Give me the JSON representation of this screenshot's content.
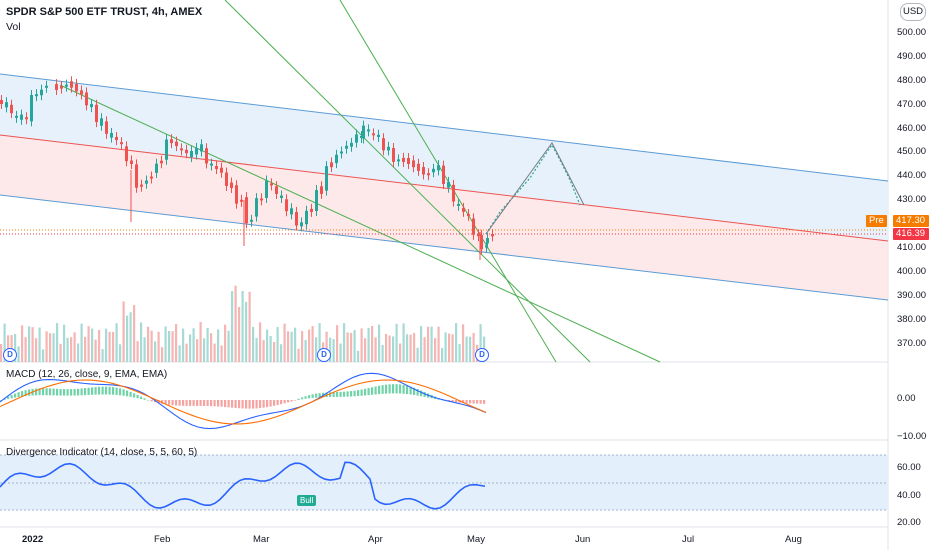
{
  "header": {
    "symbol_title": "SPDR S&P 500 ETF TRUST, 4h, AMEX",
    "volume_label": "Vol",
    "currency": "USD"
  },
  "price_axis": {
    "ticks": [
      "500.00",
      "490.00",
      "480.00",
      "470.00",
      "460.00",
      "450.00",
      "440.00",
      "430.00",
      "410.00",
      "400.00",
      "390.00",
      "380.00",
      "370.00"
    ],
    "pre_label": "Pre",
    "pre_price": "417.30",
    "last_price": "416.39",
    "pre_color": "#f57c00",
    "last_color": "#f23645"
  },
  "time_axis": {
    "ticks": [
      "2022",
      "Feb",
      "Mar",
      "Apr",
      "May",
      "Jun",
      "Jul",
      "Aug"
    ]
  },
  "macd": {
    "title": "MACD (12, 26, close, 9, EMA, EMA)",
    "ticks": [
      "0.00",
      "−10.00"
    ]
  },
  "divergence": {
    "title": "Divergence Indicator (14, close, 5, 5, 60, 5)",
    "ticks": [
      "60.00",
      "40.00",
      "20.00"
    ],
    "bull_label": "Bull"
  },
  "dividend_marks": [
    "D",
    "D",
    "D"
  ],
  "colors": {
    "up": "#26a69a",
    "down": "#ef5350",
    "channel_blue": "#5b9bd5",
    "channel_red": "#ef5350",
    "trend_green": "#4caf50",
    "macd_line": "#2962ff",
    "signal_line": "#ff6d00"
  }
}
